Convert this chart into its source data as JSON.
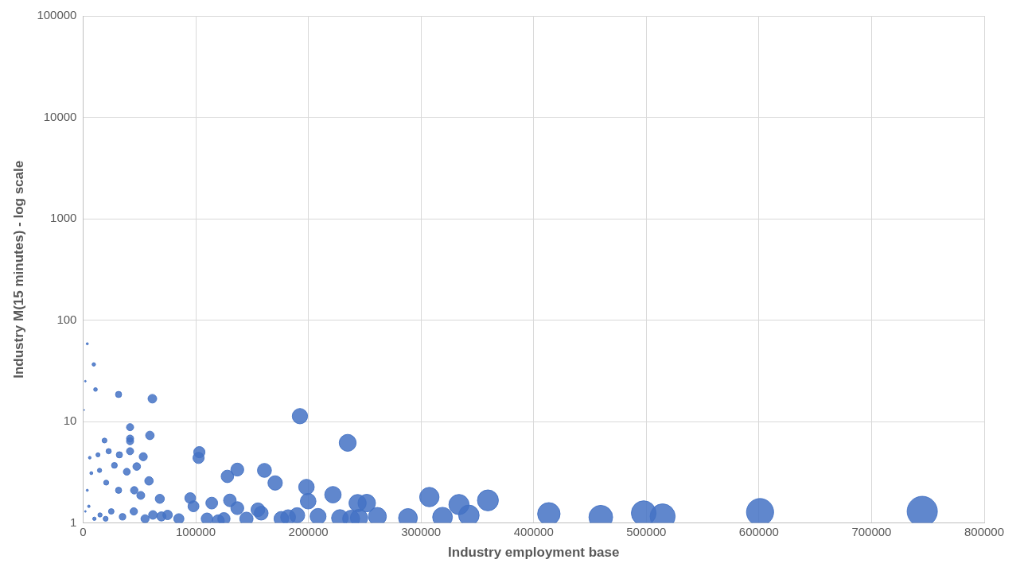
{
  "chart_data": {
    "type": "bubble",
    "xlabel": "Industry employment base",
    "ylabel": "Industry M(15 minutes) - log scale",
    "log": "y",
    "grid": true,
    "xlim": [
      0,
      800000
    ],
    "xticks": [
      0,
      100000,
      200000,
      300000,
      400000,
      500000,
      600000,
      700000,
      800000
    ],
    "ylim": [
      1,
      100000
    ],
    "yticks": [
      1,
      10,
      100,
      1000,
      10000,
      100000
    ],
    "series": [
      {
        "color": "#4472c4",
        "x": [
          745000,
          601000,
          514500,
          497700,
          459600,
          413500,
          359400,
          342500,
          333700,
          319100,
          307400,
          288400,
          261300,
          251800,
          243700,
          234900,
          221800,
          192500,
          198300,
          199800,
          208600,
          170500,
          161000,
          158100,
          155200,
          136900,
          128100,
          130300,
          136900,
          114200,
          103200,
          102500,
          95100,
          98000,
          182000,
          190000,
          69500,
          68100,
          9500,
          11000,
          31500,
          61500,
          3700,
          41700,
          41700,
          41700,
          59300,
          41700,
          32200,
          19000,
          22700,
          53400,
          13200,
          47600,
          27800,
          38800,
          14600,
          58500,
          5900,
          7300,
          20500,
          31500,
          45400,
          51200,
          3700,
          5100,
          10000,
          15000,
          20000,
          25000,
          35000,
          45000,
          55000,
          62000,
          75000,
          85000,
          110000,
          120000,
          125000,
          145000,
          176000,
          228000,
          238000,
          245000,
          2000,
          1000,
          2000
        ],
        "values": [
          1.3,
          1.28,
          1.16,
          1.25,
          1.14,
          1.23,
          1.67,
          1.19,
          1.52,
          1.14,
          1.8,
          1.12,
          1.16,
          1.57,
          1.57,
          6.17,
          1.9,
          11.3,
          2.26,
          1.64,
          1.16,
          2.48,
          3.3,
          1.25,
          1.35,
          3.36,
          2.88,
          1.67,
          1.4,
          1.57,
          4.99,
          4.38,
          1.76,
          1.46,
          1.14,
          1.19,
          1.16,
          1.73,
          36.6,
          20.7,
          18.5,
          16.8,
          58.5,
          8.8,
          6.8,
          6.4,
          7.3,
          5.1,
          4.7,
          6.5,
          5.1,
          4.5,
          4.7,
          3.6,
          3.7,
          3.2,
          3.3,
          2.6,
          4.4,
          3.1,
          2.5,
          2.1,
          2.1,
          1.87,
          2.1,
          1.46,
          1.1,
          1.2,
          1.1,
          1.3,
          1.15,
          1.3,
          1.1,
          1.2,
          1.2,
          1.1,
          1.1,
          1.05,
          1.1,
          1.1,
          1.1,
          1.12,
          1.1,
          1.12,
          1.3,
          13,
          25
        ],
        "sizes": [
          1,
          0.807,
          0.691,
          0.668,
          0.617,
          0.555,
          0.482,
          0.46,
          0.448,
          0.428,
          0.413,
          0.387,
          0.351,
          0.338,
          0.327,
          0.315,
          0.298,
          0.258,
          0.266,
          0.268,
          0.28,
          0.229,
          0.216,
          0.212,
          0.208,
          0.184,
          0.172,
          0.175,
          0.184,
          0.153,
          0.139,
          0.138,
          0.128,
          0.132,
          0.244,
          0.255,
          0.093,
          0.091,
          0.013,
          0.015,
          0.042,
          0.083,
          0.005,
          0.056,
          0.056,
          0.056,
          0.08,
          0.056,
          0.043,
          0.026,
          0.03,
          0.072,
          0.018,
          0.064,
          0.037,
          0.052,
          0.02,
          0.079,
          0.008,
          0.01,
          0.028,
          0.042,
          0.061,
          0.069,
          0.005,
          0.007,
          0.013,
          0.02,
          0.027,
          0.034,
          0.047,
          0.06,
          0.074,
          0.083,
          0.1,
          0.114,
          0.148,
          0.161,
          0.168,
          0.195,
          0.236,
          0.306,
          0.319,
          0.329,
          0.003,
          0.001,
          0.003
        ]
      }
    ]
  }
}
